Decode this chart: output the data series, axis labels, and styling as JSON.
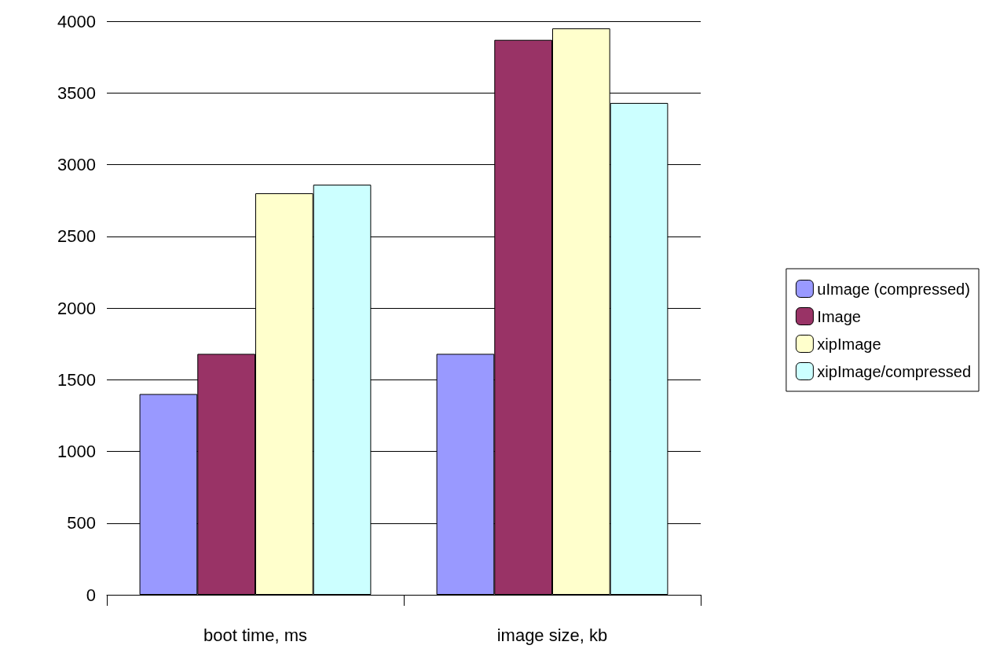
{
  "chart_data": {
    "type": "bar",
    "categories": [
      "boot time, ms",
      "image size, kb"
    ],
    "series": [
      {
        "name": "uImage (compressed)",
        "color": "#9999ff",
        "values": [
          1400,
          1680
        ]
      },
      {
        "name": "Image",
        "color": "#993366",
        "values": [
          1680,
          3870
        ]
      },
      {
        "name": "xipImage",
        "color": "#ffffcc",
        "values": [
          2800,
          3950
        ]
      },
      {
        "name": "xipImage/compressed",
        "color": "#ccffff",
        "values": [
          2860,
          3430
        ]
      }
    ],
    "ylim": [
      0,
      4000
    ],
    "yticks": [
      0,
      500,
      1000,
      1500,
      2000,
      2500,
      3000,
      3500,
      4000
    ],
    "grid": "y",
    "legend": "right"
  }
}
